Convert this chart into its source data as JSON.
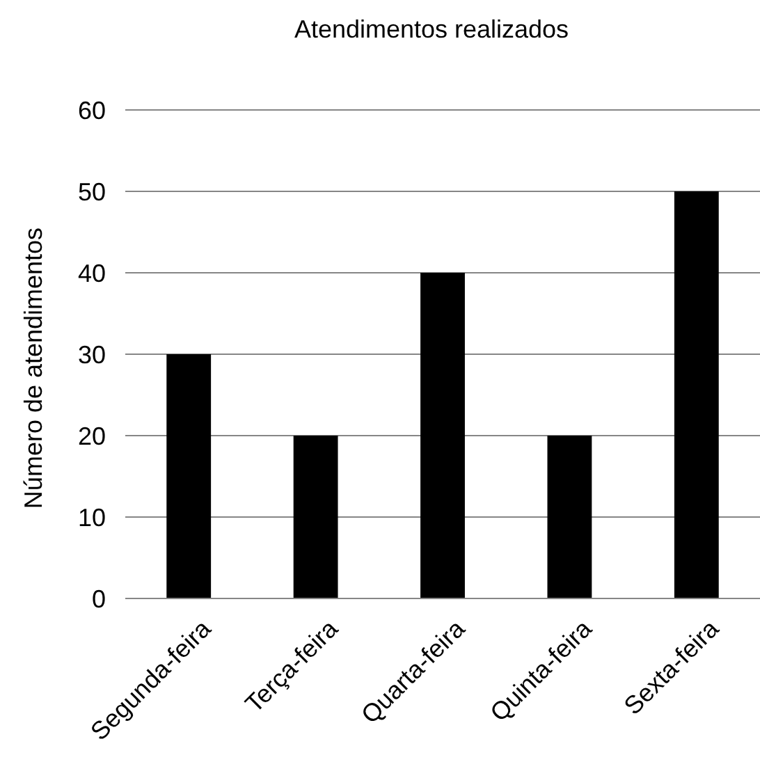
{
  "chart_data": {
    "type": "bar",
    "title": "Atendimentos realizados",
    "ylabel": "Número de atendimentos",
    "categories": [
      "Segunda-feira",
      "Terça-feira",
      "Quarta-feira",
      "Quinta-feira",
      "Sexta-feira"
    ],
    "values": [
      30,
      20,
      40,
      20,
      50
    ],
    "color": "#000000",
    "ylim": [
      0,
      60
    ],
    "yticks": [
      0,
      10,
      20,
      30,
      40,
      50,
      60
    ],
    "grid": "y"
  }
}
